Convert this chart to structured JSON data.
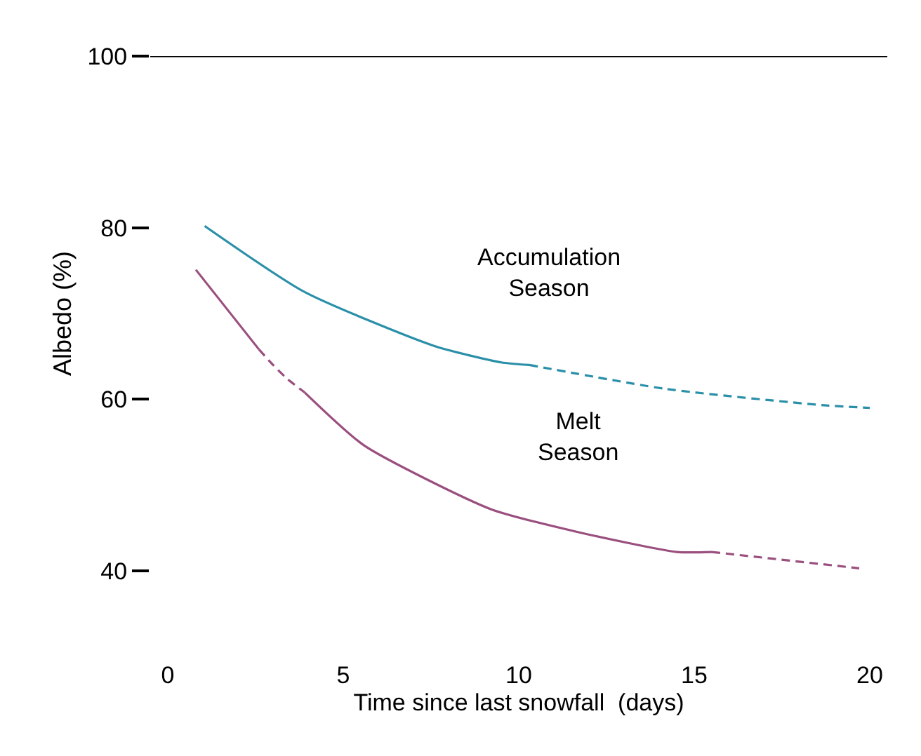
{
  "chart_data": {
    "type": "line",
    "xlabel": "Time since last snowfall  (days)",
    "ylabel": "Albedo (%)",
    "xlim": [
      -0.5,
      20.5
    ],
    "xticks": [
      0,
      5,
      10,
      15,
      20
    ],
    "ylim": [
      40,
      100
    ],
    "yticks": [
      40,
      60,
      80,
      100
    ],
    "marker": "none",
    "ref_lines": [
      {
        "axis": "y",
        "value": 100,
        "color": "#000000"
      }
    ],
    "annotations": [
      "Accumulation\nSeason",
      "Melt\nSeason"
    ],
    "series": [
      {
        "color": "#2a8fa8",
        "line_style": "solid",
        "x": [
          1.05,
          3.9,
          7.6,
          9.5,
          10.3
        ],
        "values": [
          80.2,
          72.5,
          66.2,
          64.3,
          64
        ]
      },
      {
        "color": "#2a8fa8",
        "line_style": "dashed",
        "x": [
          10.3,
          14.2,
          18.7,
          20
        ],
        "values": [
          64,
          61.2,
          59.3,
          59
        ]
      },
      {
        "color": "#9a4f7e",
        "line_style": "solid",
        "x": [
          0.8,
          2.6
        ],
        "values": [
          75.1,
          65.8
        ]
      },
      {
        "color": "#9a4f7e",
        "line_style": "dashed",
        "x": [
          2.6,
          3,
          3.4,
          3.9
        ],
        "values": [
          65.8,
          64,
          62.4,
          60.8
        ]
      },
      {
        "color": "#9a4f7e",
        "line_style": "solid",
        "x": [
          3.9,
          5.6,
          9.2,
          11.6,
          14.5,
          15.5
        ],
        "values": [
          60.8,
          54.6,
          47.2,
          44.6,
          42.2,
          42.2
        ]
      },
      {
        "color": "#9a4f7e",
        "line_style": "dashed",
        "x": [
          15.5,
          19.7
        ],
        "values": [
          42.2,
          40.3
        ]
      }
    ]
  }
}
